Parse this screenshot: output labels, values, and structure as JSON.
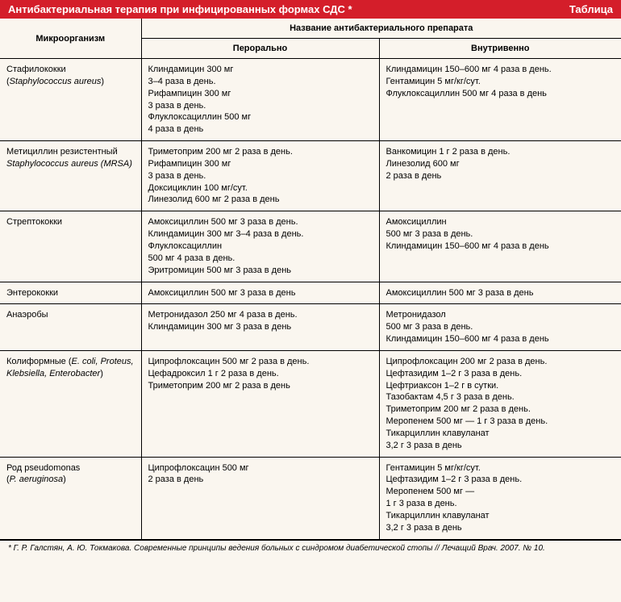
{
  "header": {
    "title": "Антибактериальная терапия при инфицированных формах СДС *",
    "badge": "Таблица"
  },
  "columns": {
    "organism": "Микроорганизм",
    "drug_group": "Название антибактериального препарата",
    "oral": "Перорально",
    "iv": "Внутривенно"
  },
  "rows": [
    {
      "organism_html": "Стафилококки<br>(<em>Staphylococcus aureus</em>)",
      "oral": "Клиндамицин 300 мг<br>3–4 раза в день.<br>Рифампицин 300 мг<br>3 раза в день.<br>Флуклоксациллин 500 мг<br>4 раза в день",
      "iv": "Клиндамицин 150–600 мг 4 раза в день.<br>Гентамицин 5 мг/кг/сут.<br>Флуклоксациллин 500 мг 4 раза в день"
    },
    {
      "organism_html": "Метициллин резистентный<br><em>Staphylococcus aureus (MRSA)</em>",
      "oral": "Триметоприм 200 мг 2 раза в день.<br>Рифампицин 300 мг<br>3 раза в день.<br>Доксициклин 100 мг/сут.<br>Линезолид 600 мг 2 раза в день",
      "iv": "Ванкомицин 1 г 2 раза в день.<br>Линезолид 600 мг<br>2 раза в день"
    },
    {
      "organism_html": "Стрептококки",
      "oral": "Амоксициллин 500 мг 3 раза в день.<br>Клиндамицин 300 мг 3–4 раза в день.<br>Флуклоксациллин<br>500 мг 4 раза в день.<br>Эритромицин 500 мг 3 раза в день",
      "iv": "Амоксициллин<br>500 мг 3 раза в день.<br>Клиндамицин 150–600 мг 4 раза в день"
    },
    {
      "organism_html": "Энтерококки",
      "oral": "Амоксициллин 500 мг 3 раза в день",
      "iv": "Амоксициллин 500 мг 3 раза в день"
    },
    {
      "organism_html": "Анаэробы",
      "oral": "Метронидазол 250 мг 4 раза в день.<br>Клиндамицин 300 мг 3 раза в день",
      "iv": "Метронидазол<br>500 мг 3 раза в день.<br>Клиндамицин 150–600 мг 4 раза в день"
    },
    {
      "organism_html": "Колиформные (<em>E. coli, Proteus, Klebsiella, Enterobacter</em>)",
      "oral": "Ципрофлоксацин 500 мг 2 раза в день.<br>Цефадроксил 1 г 2 раза в день.<br>Триметоприм 200 мг 2 раза в день",
      "iv": "Ципрофлоксацин 200 мг 2 раза в день.<br>Цефтазидим 1–2 г 3 раза в день.<br>Цефтриаксон 1–2 г в сутки.<br>Тазобактам 4,5 г 3 раза в день.<br>Триметоприм 200 мг 2 раза в день.<br>Меропенем 500 мг — 1 г 3 раза в день.<br>Тикарциллин клавуланат<br>3,2 г 3 раза в день"
    },
    {
      "organism_html": "Род pseudomonas<br>(<em>P. aeruginosa</em>)",
      "oral": "Ципрофлоксацин 500 мг<br>2 раза в день",
      "iv": "Гентамицин 5 мг/кг/сут.<br>Цефтазидим 1–2 г 3 раза в день.<br>Меропенем 500 мг —<br>1 г 3 раза в день.<br>Тикарциллин клавуланат<br>3,2 г 3 раза в день"
    }
  ],
  "footnote": "* Г. Р. Галстян, А. Ю. Токмакова. Современные принципы ведения больных с синдромом диабетической стопы // Лечащий Врач. 2007. № 10.",
  "colors": {
    "header_bg": "#d41e2a",
    "header_fg": "#ffffff",
    "page_bg": "#faf6ef",
    "border": "#000000"
  }
}
